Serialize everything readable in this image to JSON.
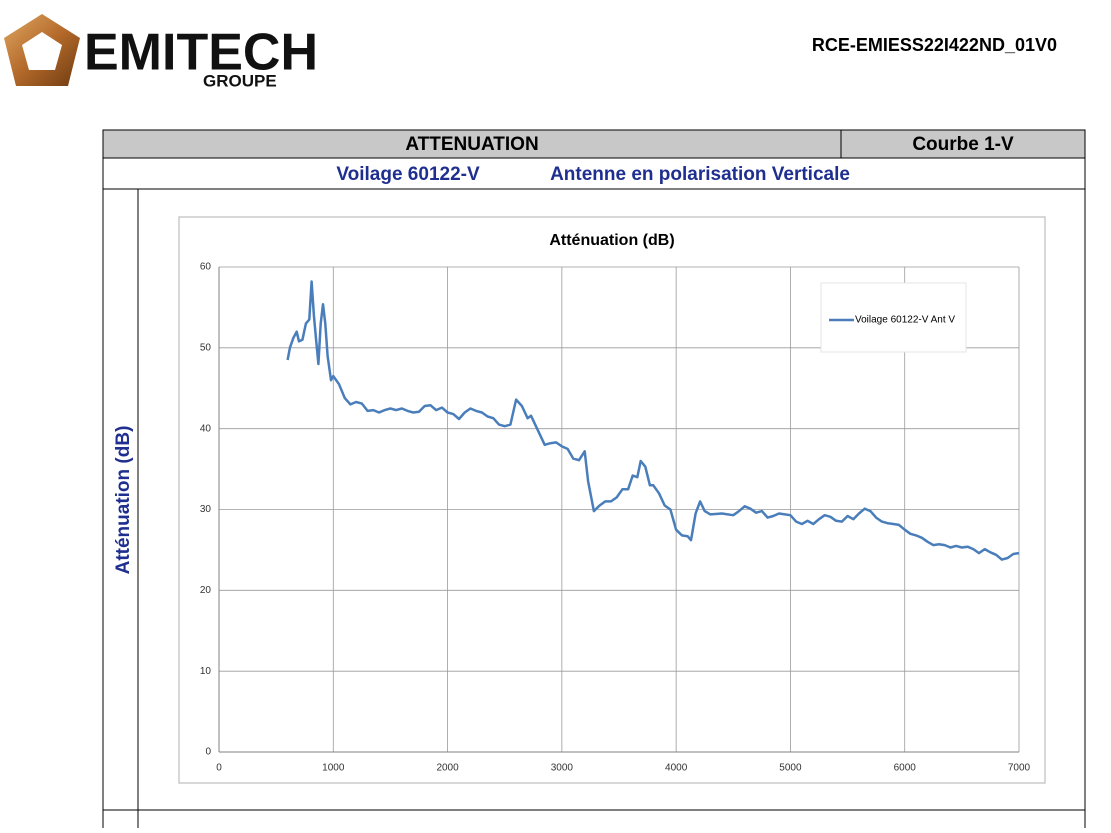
{
  "header": {
    "logo_text": "EMITECH",
    "logo_sub": "GROUPE",
    "reference": "RCE-EMIESS22I422ND_01V0"
  },
  "table": {
    "title": "ATTENUATION",
    "curve": "Courbe 1-V",
    "sample": "Voilage 60122-V",
    "antenna": "Antenne en polarisation Verticale"
  },
  "chart_data": {
    "type": "line",
    "title": "Atténuation (dB)",
    "y_label": "Atténuation (dB)",
    "xlim": [
      0,
      7000
    ],
    "xticks": [
      0,
      1000,
      2000,
      3000,
      4000,
      5000,
      6000,
      7000
    ],
    "ylim": [
      0,
      60
    ],
    "yticks": [
      0,
      10,
      20,
      30,
      40,
      50,
      60
    ],
    "grid": true,
    "legend": "top-right",
    "series": [
      {
        "name": "Voilage 60122-V Ant V",
        "color": "#4a7ebb",
        "x": [
          600,
          620,
          650,
          680,
          700,
          730,
          760,
          790,
          810,
          830,
          850,
          870,
          890,
          910,
          930,
          950,
          980,
          1000,
          1050,
          1100,
          1150,
          1200,
          1250,
          1300,
          1350,
          1400,
          1450,
          1500,
          1550,
          1600,
          1650,
          1700,
          1750,
          1800,
          1850,
          1900,
          1950,
          2000,
          2050,
          2100,
          2150,
          2200,
          2250,
          2300,
          2350,
          2400,
          2450,
          2500,
          2550,
          2600,
          2650,
          2700,
          2730,
          2800,
          2850,
          2900,
          2950,
          3000,
          3050,
          3100,
          3150,
          3200,
          3230,
          3280,
          3330,
          3380,
          3430,
          3480,
          3530,
          3580,
          3620,
          3660,
          3690,
          3730,
          3770,
          3800,
          3850,
          3900,
          3950,
          4000,
          4050,
          4100,
          4130,
          4170,
          4210,
          4250,
          4300,
          4400,
          4500,
          4550,
          4600,
          4650,
          4700,
          4750,
          4800,
          4850,
          4900,
          5000,
          5050,
          5100,
          5150,
          5200,
          5250,
          5300,
          5350,
          5400,
          5450,
          5500,
          5550,
          5600,
          5650,
          5700,
          5750,
          5800,
          5850,
          5900,
          5950,
          6000,
          6050,
          6100,
          6150,
          6200,
          6250,
          6300,
          6350,
          6400,
          6450,
          6500,
          6550,
          6600,
          6650,
          6700,
          6750,
          6800,
          6850,
          6900,
          6950,
          7000
        ],
        "values": [
          48.5,
          50,
          51.2,
          52,
          50.8,
          51,
          53,
          53.5,
          58.2,
          54,
          51,
          48,
          53,
          55.4,
          53,
          49,
          46,
          46.5,
          45.5,
          43.8,
          43,
          43.3,
          43.1,
          42.2,
          42.3,
          42,
          42.3,
          42.5,
          42.3,
          42.5,
          42.2,
          42,
          42.1,
          42.8,
          42.9,
          42.3,
          42.6,
          42,
          41.8,
          41.2,
          42,
          42.5,
          42.2,
          42,
          41.5,
          41.3,
          40.5,
          40.3,
          40.5,
          43.6,
          42.8,
          41.3,
          41.6,
          39.5,
          38,
          38.2,
          38.3,
          37.8,
          37.5,
          36.3,
          36.1,
          37.2,
          33.5,
          29.8,
          30.5,
          31,
          31,
          31.5,
          32.5,
          32.5,
          34.2,
          34,
          36,
          35.3,
          33,
          33,
          32,
          30.5,
          30,
          27.5,
          26.8,
          26.7,
          26.2,
          29.5,
          31,
          29.8,
          29.4,
          29.5,
          29.3,
          29.8,
          30.4,
          30.1,
          29.6,
          29.8,
          29,
          29.2,
          29.5,
          29.3,
          28.5,
          28.2,
          28.6,
          28.2,
          28.8,
          29.3,
          29.1,
          28.6,
          28.5,
          29.2,
          28.8,
          29.5,
          30.1,
          29.8,
          29,
          28.5,
          28.3,
          28.2,
          28.1,
          27.5,
          27,
          26.8,
          26.5,
          26,
          25.6,
          25.7,
          25.6,
          25.3,
          25.5,
          25.3,
          25.4,
          25.1,
          24.6,
          25.1,
          24.7,
          24.4,
          23.8,
          24,
          24.5,
          24.6
        ]
      }
    ]
  }
}
